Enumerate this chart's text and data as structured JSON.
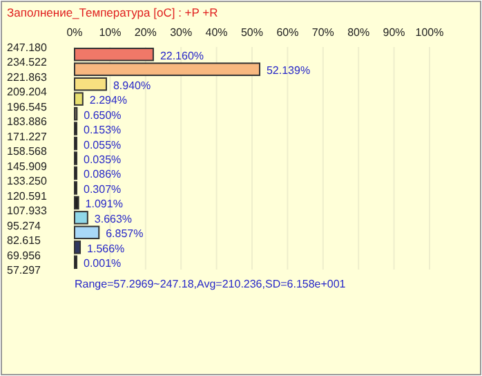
{
  "chart_data": {
    "type": "histogram",
    "orientation": "horizontal",
    "title": "Заполнение_Температура [oC] : +P +R",
    "bins": [
      57.297,
      69.956,
      82.615,
      95.274,
      107.933,
      120.591,
      133.25,
      145.909,
      158.568,
      171.227,
      183.886,
      196.545,
      209.204,
      221.863,
      234.522,
      247.18
    ],
    "values": [
      0.001,
      1.566,
      6.857,
      3.663,
      1.091,
      0.307,
      0.086,
      0.035,
      0.055,
      0.153,
      0.65,
      2.294,
      8.94,
      52.139,
      22.16
    ],
    "value_labels": [
      "0.001%",
      "1.566%",
      "6.857%",
      "3.663%",
      "1.091%",
      "0.307%",
      "0.086%",
      "0.035%",
      "0.055%",
      "0.153%",
      "0.650%",
      "2.294%",
      "8.940%",
      "52.139%",
      "22.160%"
    ],
    "colors": [
      "#202020",
      "#303860",
      "#a8d8f8",
      "#90d8e8",
      "#202020",
      "#202020",
      "#202020",
      "#202020",
      "#202020",
      "#202020",
      "#706858",
      "#e8e070",
      "#f8e080",
      "#f8b880",
      "#f07868"
    ],
    "xlim": [
      0,
      100
    ],
    "xticks": [
      {
        "value": 0,
        "label": "0%"
      },
      {
        "value": 10,
        "label": "10%"
      },
      {
        "value": 20,
        "label": "20%"
      },
      {
        "value": 30,
        "label": "30%"
      },
      {
        "value": 40,
        "label": "40%"
      },
      {
        "value": 50,
        "label": "50%"
      },
      {
        "value": 60,
        "label": "60%"
      },
      {
        "value": 70,
        "label": "70%"
      },
      {
        "value": 80,
        "label": "80%"
      },
      {
        "value": 90,
        "label": "90%"
      },
      {
        "value": 100,
        "label": "100%"
      }
    ],
    "ylim": [
      57.297,
      247.18
    ],
    "yticks": [
      {
        "value": 57.297,
        "label": "57.297"
      },
      {
        "value": 69.956,
        "label": "69.956"
      },
      {
        "value": 82.615,
        "label": "82.615"
      },
      {
        "value": 95.274,
        "label": "95.274"
      },
      {
        "value": 107.933,
        "label": "107.933"
      },
      {
        "value": 120.591,
        "label": "120.591"
      },
      {
        "value": 133.25,
        "label": "133.250"
      },
      {
        "value": 145.909,
        "label": "145.909"
      },
      {
        "value": 158.568,
        "label": "158.568"
      },
      {
        "value": 171.227,
        "label": "171.227"
      },
      {
        "value": 183.886,
        "label": "183.886"
      },
      {
        "value": 196.545,
        "label": "196.545"
      },
      {
        "value": 209.204,
        "label": "209.204"
      },
      {
        "value": 221.863,
        "label": "221.863"
      },
      {
        "value": 234.522,
        "label": "234.522"
      },
      {
        "value": 247.18,
        "label": "247.180"
      }
    ],
    "grid": "x",
    "annotations": [
      "Range=57.2969~247.18,Avg=210.236,SD=6.158e+001"
    ]
  }
}
